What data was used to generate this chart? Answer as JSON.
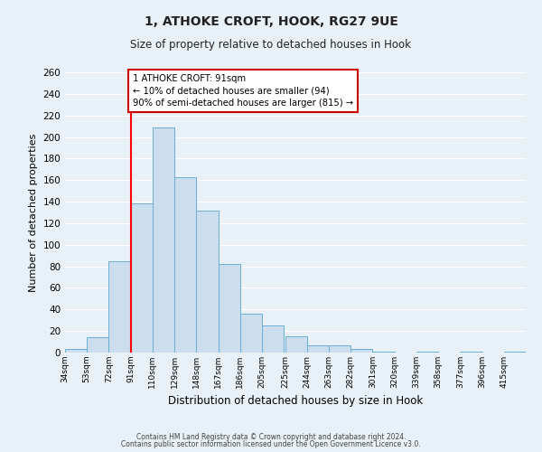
{
  "title": "1, ATHOKE CROFT, HOOK, RG27 9UE",
  "subtitle": "Size of property relative to detached houses in Hook",
  "xlabel": "Distribution of detached houses by size in Hook",
  "ylabel": "Number of detached properties",
  "bar_color": "#ccdded",
  "bar_edge_color": "#6aaed6",
  "bg_color": "#e8f0f8",
  "grid_color": "#ffffff",
  "red_line_x": 91,
  "bin_labels": [
    "34sqm",
    "53sqm",
    "72sqm",
    "91sqm",
    "110sqm",
    "129sqm",
    "148sqm",
    "167sqm",
    "186sqm",
    "205sqm",
    "225sqm",
    "244sqm",
    "263sqm",
    "282sqm",
    "301sqm",
    "320sqm",
    "339sqm",
    "358sqm",
    "377sqm",
    "396sqm",
    "415sqm"
  ],
  "bin_edges": [
    34,
    53,
    72,
    91,
    110,
    129,
    148,
    167,
    186,
    205,
    225,
    244,
    263,
    282,
    301,
    320,
    339,
    358,
    377,
    396,
    415,
    434
  ],
  "bar_heights": [
    3,
    14,
    85,
    138,
    209,
    163,
    132,
    82,
    36,
    25,
    15,
    7,
    7,
    3,
    1,
    0,
    1,
    0,
    1,
    0,
    1
  ],
  "ylim": [
    0,
    260
  ],
  "yticks": [
    0,
    20,
    40,
    60,
    80,
    100,
    120,
    140,
    160,
    180,
    200,
    220,
    240,
    260
  ],
  "annotation_text": "1 ATHOKE CROFT: 91sqm\n← 10% of detached houses are smaller (94)\n90% of semi-detached houses are larger (815) →",
  "annotation_box_color": "#ffffff",
  "annotation_box_edge_color": "#cc0000",
  "footer_line1": "Contains HM Land Registry data © Crown copyright and database right 2024.",
  "footer_line2": "Contains public sector information licensed under the Open Government Licence v3.0."
}
